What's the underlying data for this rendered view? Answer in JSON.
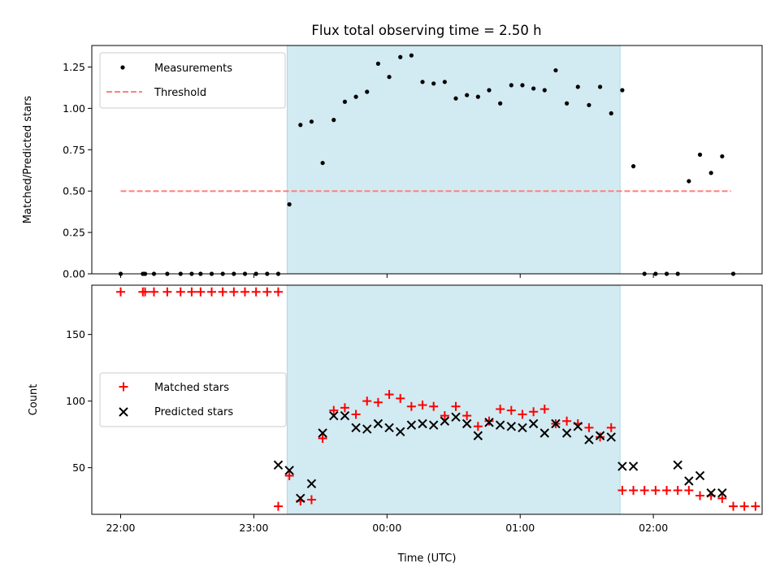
{
  "title": "Flux total observing time = 2.50 h",
  "xlabel": "Time (UTC)",
  "colors": {
    "window": "#add8e6",
    "measurements": "#000000",
    "threshold": "#ff7f7f",
    "matched": "#ff0000",
    "predicted": "#000000"
  },
  "chart_data": [
    {
      "type": "scatter",
      "ylabel": "Matched/Predicted stars",
      "ylim": [
        0,
        1.38
      ],
      "xlim": [
        "21:47",
        "02:49"
      ],
      "yticks": [
        "0.00",
        "0.25",
        "0.50",
        "0.75",
        "1.00",
        "1.25"
      ],
      "xticks": [
        "22:00",
        "23:00",
        "00:00",
        "01:00",
        "02:00"
      ],
      "x_tick_labels_shown": false,
      "legend_position": "upper-left",
      "shaded_window": {
        "start": "23:15",
        "end": "01:45"
      },
      "threshold": {
        "name": "Threshold",
        "value": 0.5,
        "x_start": "22:00",
        "x_end": "02:35",
        "style": "dashed"
      },
      "series": [
        {
          "name": "Measurements",
          "marker": "dot",
          "x": [
            "22:00",
            "22:10",
            "22:11",
            "22:15",
            "22:21",
            "22:27",
            "22:32",
            "22:36",
            "22:41",
            "22:46",
            "22:51",
            "22:56",
            "23:01",
            "23:06",
            "23:11",
            "23:16",
            "23:21",
            "23:26",
            "23:31",
            "23:36",
            "23:41",
            "23:46",
            "23:51",
            "23:56",
            "00:01",
            "00:06",
            "00:11",
            "00:16",
            "00:21",
            "00:26",
            "00:31",
            "00:36",
            "00:41",
            "00:46",
            "00:51",
            "00:56",
            "01:01",
            "01:06",
            "01:11",
            "01:16",
            "01:21",
            "01:26",
            "01:31",
            "01:36",
            "01:41",
            "01:46",
            "01:51",
            "01:56",
            "02:01",
            "02:06",
            "02:11",
            "02:16",
            "02:21",
            "02:26",
            "02:31",
            "02:36"
          ],
          "y": [
            0.0,
            0.0,
            0.0,
            0.0,
            0.0,
            0.0,
            0.0,
            0.0,
            0.0,
            0.0,
            0.0,
            0.0,
            0.0,
            0.0,
            0.0,
            0.42,
            0.9,
            0.92,
            0.67,
            0.93,
            1.04,
            1.07,
            1.1,
            1.27,
            1.19,
            1.31,
            1.32,
            1.16,
            1.15,
            1.16,
            1.06,
            1.08,
            1.07,
            1.11,
            1.03,
            1.14,
            1.14,
            1.12,
            1.11,
            1.23,
            1.03,
            1.13,
            1.02,
            1.13,
            0.97,
            1.11,
            0.65,
            0.0,
            0.0,
            0.0,
            0.0,
            0.56,
            0.72,
            0.61,
            0.71,
            0.0
          ]
        }
      ]
    },
    {
      "type": "scatter",
      "ylabel": "Count",
      "ylim": [
        15,
        187
      ],
      "xlim": [
        "21:47",
        "02:49"
      ],
      "yticks": [
        "50",
        "100",
        "150"
      ],
      "xticks": [
        "22:00",
        "23:00",
        "00:00",
        "01:00",
        "02:00"
      ],
      "legend_position": "center-left",
      "shaded_window": {
        "start": "23:15",
        "end": "01:45"
      },
      "series": [
        {
          "name": "Matched stars",
          "marker": "plus",
          "x": [
            "22:00",
            "22:10",
            "22:11",
            "22:15",
            "22:21",
            "22:27",
            "22:32",
            "22:36",
            "22:41",
            "22:46",
            "22:51",
            "22:56",
            "23:01",
            "23:06",
            "23:11",
            "23:11",
            "23:16",
            "23:21",
            "23:26",
            "23:31",
            "23:36",
            "23:41",
            "23:46",
            "23:51",
            "23:56",
            "00:01",
            "00:06",
            "00:11",
            "00:16",
            "00:21",
            "00:26",
            "00:31",
            "00:36",
            "00:41",
            "00:46",
            "00:51",
            "00:56",
            "01:01",
            "01:06",
            "01:11",
            "01:16",
            "01:21",
            "01:26",
            "01:31",
            "01:36",
            "01:41",
            "01:46",
            "01:51",
            "01:56",
            "02:01",
            "02:06",
            "02:11",
            "02:16",
            "02:21",
            "02:26",
            "02:31",
            "02:36",
            "02:41",
            "02:46"
          ],
          "y": [
            182,
            182,
            182,
            182,
            182,
            182,
            182,
            182,
            182,
            182,
            182,
            182,
            182,
            182,
            182,
            21,
            44,
            25,
            26,
            72,
            93,
            95,
            90,
            100,
            99,
            105,
            102,
            96,
            97,
            96,
            89,
            96,
            89,
            81,
            85,
            94,
            93,
            90,
            92,
            94,
            83,
            85,
            83,
            80,
            73,
            80,
            33,
            33,
            33,
            33,
            33,
            33,
            33,
            29,
            29,
            27,
            21,
            21,
            21
          ]
        },
        {
          "name": "Predicted stars",
          "marker": "x",
          "x": [
            "23:11",
            "23:16",
            "23:21",
            "23:26",
            "23:31",
            "23:36",
            "23:41",
            "23:46",
            "23:51",
            "23:56",
            "00:01",
            "00:06",
            "00:11",
            "00:16",
            "00:21",
            "00:26",
            "00:31",
            "00:36",
            "00:41",
            "00:46",
            "00:51",
            "00:56",
            "01:01",
            "01:06",
            "01:11",
            "01:16",
            "01:21",
            "01:26",
            "01:31",
            "01:36",
            "01:41",
            "01:46",
            "01:51",
            "02:11",
            "02:16",
            "02:21",
            "02:26",
            "02:31"
          ],
          "y": [
            52,
            48,
            27,
            38,
            76,
            89,
            89,
            80,
            79,
            83,
            80,
            77,
            82,
            83,
            82,
            85,
            88,
            83,
            74,
            84,
            82,
            81,
            80,
            83,
            76,
            83,
            76,
            81,
            71,
            74,
            73,
            51,
            51,
            52,
            40,
            44,
            31,
            31
          ]
        }
      ]
    }
  ]
}
